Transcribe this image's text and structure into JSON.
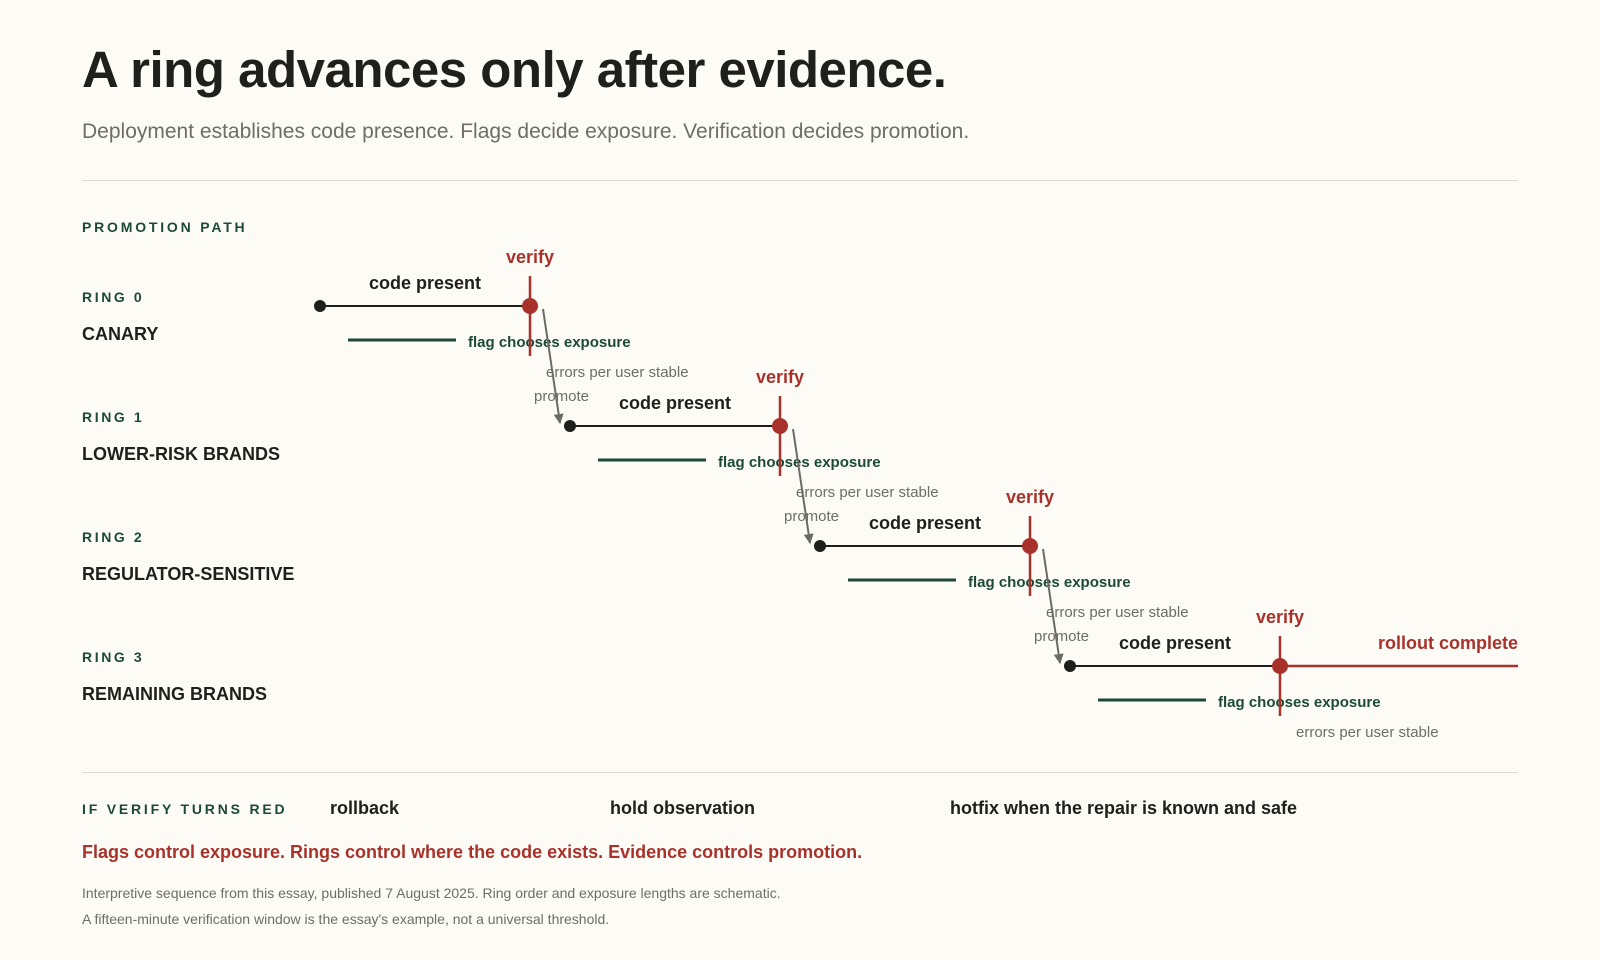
{
  "header": {
    "title": "A ring advances only after evidence.",
    "subtitle": "Deployment establishes code presence. Flags decide exposure. Verification decides promotion."
  },
  "promotion": {
    "label": "PROMOTION PATH",
    "rings": [
      {
        "num": "RING 0",
        "name": "CANARY"
      },
      {
        "num": "RING 1",
        "name": "LOWER-RISK BRANDS"
      },
      {
        "num": "RING 2",
        "name": "REGULATOR-SENSITIVE"
      },
      {
        "num": "RING 3",
        "name": "REMAINING BRANDS"
      }
    ],
    "code_label": "code present",
    "verify_label": "verify",
    "flag_label": "flag chooses exposure",
    "metric_label": "errors per user stable",
    "promote_label": "promote",
    "complete_label": "rollout complete"
  },
  "failure": {
    "label": "IF VERIFY TURNS RED",
    "responses": [
      "rollback",
      "hold observation",
      "hotfix when the repair is known and safe"
    ]
  },
  "tagline": "Flags control exposure. Rings control where the code exists. Evidence controls promotion.",
  "notes": [
    "Interpretive sequence from this essay, published 7 August 2025. Ring order and exposure lengths are schematic.",
    "A fifteen-minute verification window is the essay's example, not a universal threshold."
  ],
  "colors": {
    "ink": "#1f1f1c",
    "accent_red": "#a8322b",
    "accent_green": "#1d4a36",
    "muted": "#6e6e68",
    "arrow": "#6b6b66"
  }
}
